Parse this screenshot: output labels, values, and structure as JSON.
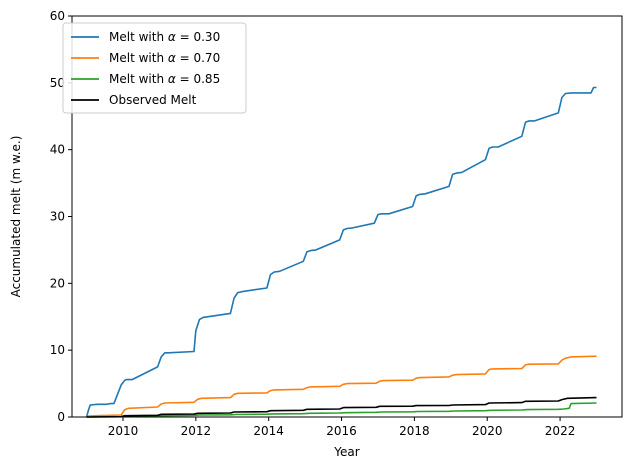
{
  "chart_data": {
    "type": "line",
    "xlabel": "Year",
    "ylabel": "Accumulated melt (m w.e.)",
    "xlim": [
      2008.6,
      2023.7
    ],
    "ylim": [
      0,
      60
    ],
    "x_ticks": [
      2010,
      2012,
      2014,
      2016,
      2018,
      2020,
      2022
    ],
    "y_ticks": [
      0,
      10,
      20,
      30,
      40,
      50,
      60
    ],
    "grid": false,
    "legend_position": "top-left",
    "series": [
      {
        "name": "Melt with α = 0.30",
        "legend_prefix": "Melt with ",
        "legend_symbol": "α",
        "legend_suffix": " = 0.30",
        "color": "#1f77b4",
        "x": [
          2009.0,
          2009.05,
          2009.1,
          2009.3,
          2009.45,
          2009.55,
          2009.65,
          2009.75,
          2009.95,
          2010.05,
          2010.1,
          2010.25,
          2010.95,
          2011.05,
          2011.15,
          2011.25,
          2011.95,
          2012.0,
          2012.1,
          2012.2,
          2012.95,
          2013.05,
          2013.15,
          2013.3,
          2013.95,
          2014.05,
          2014.15,
          2014.3,
          2014.95,
          2015.05,
          2015.15,
          2015.3,
          2015.95,
          2016.05,
          2016.15,
          2016.3,
          2016.9,
          2017.0,
          2017.1,
          2017.3,
          2017.95,
          2018.05,
          2018.15,
          2018.3,
          2018.95,
          2019.05,
          2019.15,
          2019.3,
          2019.95,
          2020.05,
          2020.15,
          2020.3,
          2020.95,
          2021.05,
          2021.15,
          2021.3,
          2021.95,
          2022.05,
          2022.15,
          2022.3,
          2022.85,
          2022.92,
          2023.0
        ],
        "y": [
          0.0,
          1.0,
          1.8,
          1.9,
          1.9,
          1.9,
          2.0,
          2.0,
          4.8,
          5.5,
          5.6,
          5.6,
          7.5,
          9.0,
          9.6,
          9.6,
          9.8,
          12.9,
          14.6,
          14.9,
          15.5,
          17.8,
          18.6,
          18.8,
          19.3,
          21.3,
          21.7,
          21.8,
          23.3,
          24.7,
          24.9,
          25.0,
          26.5,
          28.0,
          28.2,
          28.3,
          29.0,
          30.3,
          30.4,
          30.4,
          31.5,
          33.1,
          33.3,
          33.4,
          34.5,
          36.3,
          36.5,
          36.6,
          38.5,
          40.2,
          40.4,
          40.4,
          42.0,
          44.1,
          44.3,
          44.3,
          45.5,
          47.8,
          48.4,
          48.5,
          48.5,
          49.3,
          49.3
        ]
      },
      {
        "name": "Melt with α = 0.70",
        "legend_prefix": "Melt with ",
        "legend_symbol": "α",
        "legend_suffix": " = 0.70",
        "color": "#ff7f0e",
        "x": [
          2009.0,
          2009.05,
          2009.3,
          2009.95,
          2010.05,
          2010.15,
          2010.95,
          2011.05,
          2011.15,
          2011.95,
          2012.05,
          2012.15,
          2012.95,
          2013.05,
          2013.15,
          2013.95,
          2014.05,
          2014.15,
          2014.95,
          2015.05,
          2015.15,
          2015.95,
          2016.05,
          2016.15,
          2016.95,
          2017.05,
          2017.15,
          2017.95,
          2018.05,
          2018.15,
          2018.95,
          2019.05,
          2019.15,
          2019.95,
          2020.05,
          2020.15,
          2020.95,
          2021.05,
          2021.15,
          2021.95,
          2022.05,
          2022.15,
          2022.3,
          2023.0
        ],
        "y": [
          0.0,
          0.15,
          0.2,
          0.3,
          1.1,
          1.3,
          1.5,
          1.95,
          2.1,
          2.2,
          2.65,
          2.8,
          2.9,
          3.4,
          3.55,
          3.6,
          3.95,
          4.05,
          4.15,
          4.4,
          4.5,
          4.6,
          4.9,
          5.0,
          5.05,
          5.35,
          5.45,
          5.5,
          5.8,
          5.9,
          6.0,
          6.25,
          6.35,
          6.45,
          7.1,
          7.2,
          7.25,
          7.8,
          7.9,
          7.95,
          8.5,
          8.8,
          9.0,
          9.1
        ]
      },
      {
        "name": "Melt with α = 0.85",
        "legend_prefix": "Melt with ",
        "legend_symbol": "α",
        "legend_suffix": " = 0.85",
        "color": "#2ca02c",
        "x": [
          2009.0,
          2009.95,
          2010.1,
          2010.95,
          2011.1,
          2011.95,
          2012.1,
          2012.95,
          2013.1,
          2013.95,
          2014.1,
          2014.95,
          2015.1,
          2015.95,
          2016.1,
          2016.95,
          2017.1,
          2017.95,
          2018.1,
          2018.95,
          2019.1,
          2019.95,
          2020.1,
          2020.95,
          2021.1,
          2021.95,
          2022.1,
          2022.25,
          2022.3,
          2023.0
        ],
        "y": [
          0.0,
          0.05,
          0.1,
          0.15,
          0.2,
          0.25,
          0.3,
          0.33,
          0.38,
          0.42,
          0.46,
          0.5,
          0.55,
          0.6,
          0.65,
          0.7,
          0.75,
          0.78,
          0.82,
          0.86,
          0.9,
          0.95,
          1.0,
          1.05,
          1.1,
          1.15,
          1.2,
          1.3,
          2.0,
          2.1
        ]
      },
      {
        "name": "Observed Melt",
        "legend_prefix": "Observed Melt",
        "legend_symbol": "",
        "legend_suffix": "",
        "color": "#000000",
        "x": [
          2009.0,
          2009.95,
          2010.05,
          2010.95,
          2011.05,
          2011.95,
          2012.05,
          2012.95,
          2013.05,
          2013.95,
          2014.05,
          2014.95,
          2015.05,
          2015.95,
          2016.05,
          2016.95,
          2017.05,
          2017.95,
          2018.05,
          2018.95,
          2019.05,
          2019.95,
          2020.05,
          2020.95,
          2021.05,
          2021.95,
          2022.05,
          2022.2,
          2023.0
        ],
        "y": [
          0.0,
          0.05,
          0.2,
          0.25,
          0.4,
          0.45,
          0.55,
          0.6,
          0.75,
          0.8,
          0.95,
          1.0,
          1.15,
          1.2,
          1.4,
          1.45,
          1.6,
          1.62,
          1.7,
          1.72,
          1.8,
          1.85,
          2.1,
          2.15,
          2.35,
          2.4,
          2.6,
          2.8,
          2.9
        ]
      }
    ]
  }
}
